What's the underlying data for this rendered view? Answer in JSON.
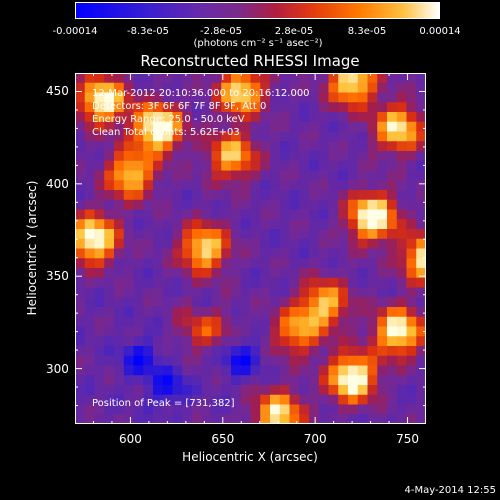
{
  "chart_data": {
    "type": "heatmap",
    "title": "Reconstructed RHESSI Image",
    "xlabel": "Heliocentric X (arcsec)",
    "ylabel": "Heliocentric Y (arcsec)",
    "xlim": [
      570,
      760
    ],
    "ylim": [
      270,
      460
    ],
    "xticks": [
      "600",
      "650",
      "700",
      "750"
    ],
    "xtick_values": [
      600,
      650,
      700,
      750
    ],
    "yticks": [
      "300",
      "350",
      "400",
      "450"
    ],
    "ytick_values": [
      300,
      350,
      400,
      450
    ],
    "colorbar": {
      "ticks": [
        "-0.00014",
        "-8.3e-05",
        "-2.8e-05",
        "2.8e-05",
        "8.3e-05",
        "0.00014"
      ],
      "units_label": "(photons cm⁻² s⁻¹ asec⁻²)",
      "range": [
        -0.00014,
        0.00014
      ],
      "colors": [
        "#0000ff",
        "#6a2aa8",
        "#b01e40",
        "#ff7a00",
        "#ffc040",
        "#ffffff"
      ]
    },
    "annotations": {
      "time_range": "12-Mar-2012 20:10:36.000 to 20:16:12.000",
      "detectors": "Detectors: 3F 6F 6F 7F 8F 9F, Att 0",
      "energy": "Energy Range: 25.0 - 50.0 keV",
      "clean": "Clean      Total counts: 5.62E+03",
      "peak": "Position of Peak = [731,382]"
    },
    "bright_regions": [
      {
        "x": 585,
        "y": 445,
        "level": 0.9
      },
      {
        "x": 615,
        "y": 430,
        "level": 1.0
      },
      {
        "x": 660,
        "y": 450,
        "level": 0.8
      },
      {
        "x": 600,
        "y": 405,
        "level": 0.75
      },
      {
        "x": 580,
        "y": 370,
        "level": 0.95
      },
      {
        "x": 640,
        "y": 365,
        "level": 0.8
      },
      {
        "x": 655,
        "y": 415,
        "level": 0.7
      },
      {
        "x": 720,
        "y": 455,
        "level": 0.85
      },
      {
        "x": 745,
        "y": 430,
        "level": 0.8
      },
      {
        "x": 731,
        "y": 382,
        "level": 1.0
      },
      {
        "x": 760,
        "y": 360,
        "level": 0.85
      },
      {
        "x": 705,
        "y": 335,
        "level": 0.7
      },
      {
        "x": 745,
        "y": 320,
        "level": 0.9
      },
      {
        "x": 720,
        "y": 295,
        "level": 1.0
      },
      {
        "x": 680,
        "y": 275,
        "level": 0.8
      },
      {
        "x": 640,
        "y": 325,
        "level": 0.65
      },
      {
        "x": 690,
        "y": 320,
        "level": 0.6
      }
    ],
    "dark_regions": [
      {
        "x": 605,
        "y": 305
      },
      {
        "x": 640,
        "y": 330
      },
      {
        "x": 660,
        "y": 305
      },
      {
        "x": 620,
        "y": 290
      }
    ]
  },
  "timestamp": "4-May-2014 12:55"
}
